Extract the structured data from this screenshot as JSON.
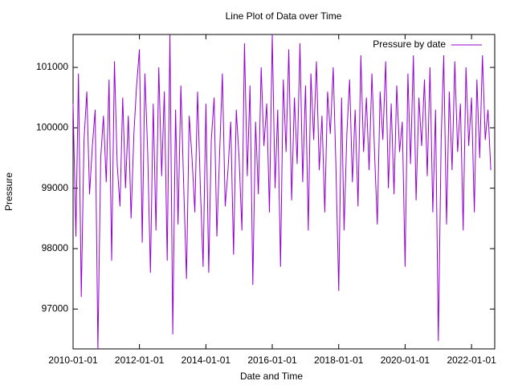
{
  "chart_data": {
    "type": "line",
    "title": "Line Plot of Data over Time",
    "xlabel": "Date and Time",
    "ylabel": "Pressure",
    "xlim": [
      "2010-01-01",
      "2022-09-13"
    ],
    "xticks": [
      "2010-01-01",
      "2012-01-01",
      "2014-01-01",
      "2016-01-01",
      "2018-01-01",
      "2020-01-01",
      "2022-01-01"
    ],
    "ylim": [
      96340,
      101545
    ],
    "yticks": [
      97000,
      98000,
      99000,
      100000,
      101000
    ],
    "legend": "top-right",
    "x": [
      "2010-01-01",
      "2010-02-01",
      "2010-03-01",
      "2010-04-01",
      "2010-05-01",
      "2010-06-01",
      "2010-07-01",
      "2010-08-01",
      "2010-09-01",
      "2010-10-01",
      "2010-11-01",
      "2010-12-01",
      "2011-01-01",
      "2011-02-01",
      "2011-03-01",
      "2011-04-01",
      "2011-05-01",
      "2011-06-01",
      "2011-07-01",
      "2011-08-01",
      "2011-09-01",
      "2011-10-01",
      "2011-11-01",
      "2011-12-01",
      "2012-01-01",
      "2012-02-01",
      "2012-03-01",
      "2012-04-01",
      "2012-05-01",
      "2012-06-01",
      "2012-07-01",
      "2012-08-01",
      "2012-09-01",
      "2012-10-01",
      "2012-11-01",
      "2012-12-01",
      "2013-01-01",
      "2013-02-01",
      "2013-03-01",
      "2013-04-01",
      "2013-05-01",
      "2013-06-01",
      "2013-07-01",
      "2013-08-01",
      "2013-09-01",
      "2013-10-01",
      "2013-11-01",
      "2013-12-01",
      "2014-01-01",
      "2014-02-01",
      "2014-03-01",
      "2014-04-01",
      "2014-05-01",
      "2014-06-01",
      "2014-07-01",
      "2014-08-01",
      "2014-09-01",
      "2014-10-01",
      "2014-11-01",
      "2014-12-01",
      "2015-01-01",
      "2015-02-01",
      "2015-03-01",
      "2015-04-01",
      "2015-05-01",
      "2015-06-01",
      "2015-07-01",
      "2015-08-01",
      "2015-09-01",
      "2015-10-01",
      "2015-11-01",
      "2015-12-01",
      "2016-01-01",
      "2016-02-01",
      "2016-03-01",
      "2016-04-01",
      "2016-05-01",
      "2016-06-01",
      "2016-07-01",
      "2016-08-01",
      "2016-09-01",
      "2016-10-01",
      "2016-11-01",
      "2016-12-01",
      "2017-01-01",
      "2017-02-01",
      "2017-03-01",
      "2017-04-01",
      "2017-05-01",
      "2017-06-01",
      "2017-07-01",
      "2017-08-01",
      "2017-09-01",
      "2017-10-01",
      "2017-11-01",
      "2017-12-01",
      "2018-01-01",
      "2018-02-01",
      "2018-03-01",
      "2018-04-01",
      "2018-05-01",
      "2018-06-01",
      "2018-07-01",
      "2018-08-01",
      "2018-09-01",
      "2018-10-01",
      "2018-11-01",
      "2018-12-01",
      "2019-01-01",
      "2019-02-01",
      "2019-03-01",
      "2019-04-01",
      "2019-05-01",
      "2019-06-01",
      "2019-07-01",
      "2019-08-01",
      "2019-09-01",
      "2019-10-01",
      "2019-11-01",
      "2019-12-01",
      "2020-01-01",
      "2020-02-01",
      "2020-03-01",
      "2020-04-01",
      "2020-05-01",
      "2020-06-01",
      "2020-07-01",
      "2020-08-01",
      "2020-09-01",
      "2020-10-01",
      "2020-11-01",
      "2020-12-01",
      "2021-01-01",
      "2021-02-01",
      "2021-03-01",
      "2021-04-01",
      "2021-05-01",
      "2021-06-01",
      "2021-07-01",
      "2021-08-01",
      "2021-09-01",
      "2021-10-01",
      "2021-11-01",
      "2021-12-01",
      "2022-01-01",
      "2022-02-01",
      "2022-03-01",
      "2022-04-01",
      "2022-05-01",
      "2022-06-01",
      "2022-07-01",
      "2022-08-01"
    ],
    "series": [
      {
        "name": "Pressure by date",
        "color": "#9400d3",
        "values": [
          100400,
          98200,
          100900,
          97200,
          99800,
          100600,
          98900,
          99700,
          100300,
          96340,
          99500,
          100200,
          99100,
          100800,
          97800,
          101100,
          99400,
          98700,
          100500,
          99000,
          100200,
          98500,
          99900,
          100700,
          101300,
          98100,
          100900,
          99600,
          97600,
          100400,
          98300,
          101000,
          99200,
          100600,
          97800,
          101545,
          96580,
          100300,
          98400,
          100700,
          99100,
          97500,
          100200,
          99500,
          98600,
          100600,
          99000,
          97700,
          100400,
          97600,
          99800,
          100500,
          98200,
          99600,
          100900,
          98700,
          99300,
          100100,
          97900,
          100300,
          99500,
          98300,
          101400,
          99200,
          100700,
          97400,
          100100,
          98900,
          101000,
          99700,
          100400,
          98600,
          101545,
          99000,
          100300,
          97700,
          100800,
          99600,
          101300,
          98800,
          100500,
          99400,
          101400,
          99100,
          100700,
          98300,
          100900,
          99800,
          101100,
          99300,
          100200,
          98600,
          100600,
          99900,
          101000,
          99400,
          97300,
          100500,
          98300,
          99900,
          100800,
          99100,
          100300,
          98700,
          101200,
          99600,
          100500,
          99300,
          100900,
          99500,
          98400,
          100600,
          99800,
          101100,
          99000,
          100400,
          98900,
          100700,
          99600,
          100100,
          97700,
          100900,
          99400,
          101200,
          98800,
          100500,
          99700,
          100800,
          99200,
          101000,
          98600,
          100300,
          96470,
          99800,
          101200,
          98400,
          100600,
          99300,
          101100,
          99600,
          100400,
          98300,
          101000,
          99700,
          100500,
          98600,
          100800,
          99500,
          101200,
          99800,
          100300,
          99300
        ]
      }
    ]
  }
}
